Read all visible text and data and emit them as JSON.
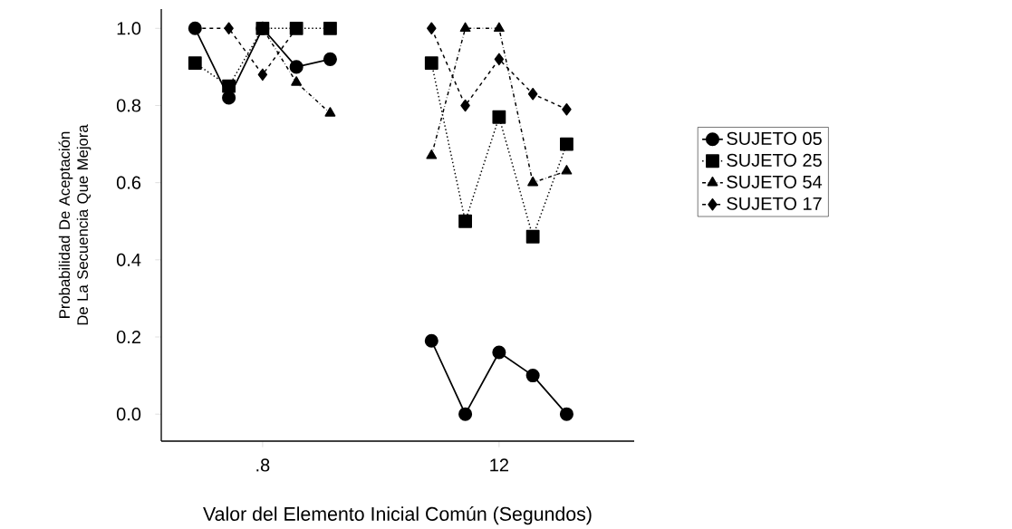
{
  "chart_data": {
    "type": "line",
    "xlabel": "Valor del Elemento Inicial Común (Segundos)",
    "ylabel": "Probabilidad De Aceptación De La Secuencia Que Mejora",
    "categories": [
      null,
      null,
      ".8",
      null,
      null,
      null,
      null,
      null,
      null,
      "12",
      null,
      null
    ],
    "series": [
      {
        "name": "SUJETO 05",
        "color": "#000000",
        "marker": "circle",
        "line_style": "solid",
        "values": [
          1.0,
          0.82,
          1.0,
          0.9,
          0.92,
          null,
          null,
          0.19,
          0.0,
          0.16,
          0.1,
          0.0
        ]
      },
      {
        "name": "SUJETO 25",
        "color": "#000000",
        "marker": "square",
        "line_style": "dotted",
        "values": [
          0.91,
          0.85,
          1.0,
          1.0,
          1.0,
          null,
          null,
          0.91,
          0.5,
          0.77,
          0.46,
          0.7
        ]
      },
      {
        "name": "SUJETO 54",
        "color": "#000000",
        "marker": "triangle",
        "line_style": "dashdot",
        "values": [
          null,
          null,
          1.0,
          0.86,
          0.78,
          null,
          null,
          0.67,
          1.0,
          1.0,
          0.6,
          0.63
        ]
      },
      {
        "name": "SUJETO 17",
        "color": "#000000",
        "marker": "diamond",
        "line_style": "dashed",
        "values": [
          1.0,
          1.0,
          0.88,
          1.0,
          null,
          null,
          null,
          1.0,
          0.8,
          0.92,
          0.83,
          0.79
        ]
      }
    ],
    "ylim": [
      -0.07,
      1.05
    ],
    "yticks": [
      {
        "value": 0,
        "label": "0.0"
      },
      {
        "value": 0.2,
        "label": "0.2"
      },
      {
        "value": 0.4,
        "label": "0.4"
      },
      {
        "value": 0.6,
        "label": "0.6"
      },
      {
        "value": 0.8,
        "label": "0.8"
      },
      {
        "value": 1,
        "label": "1.0"
      }
    ],
    "grid": false,
    "legend": "right"
  }
}
